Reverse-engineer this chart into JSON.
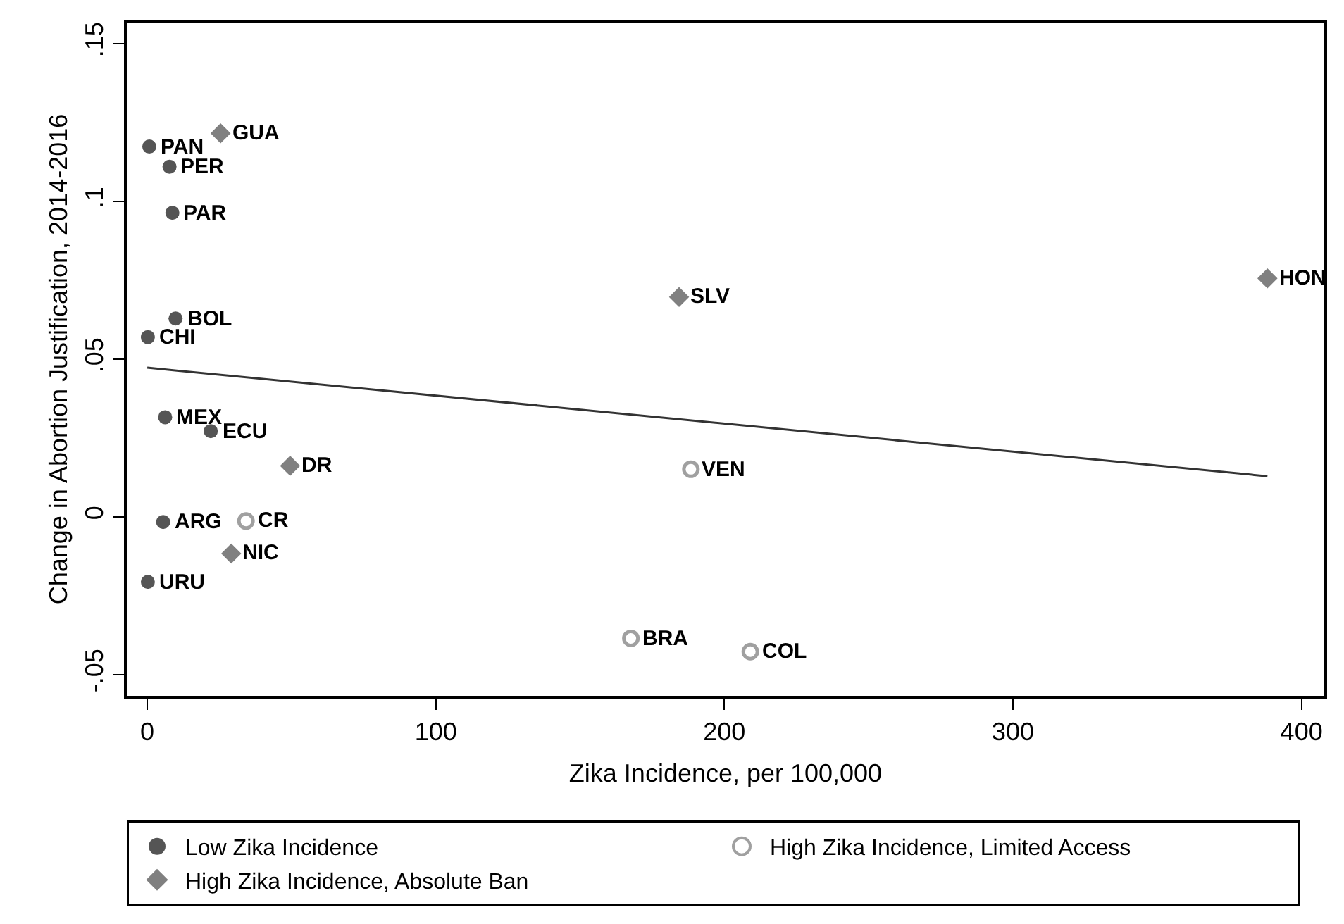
{
  "chart_data": {
    "type": "scatter",
    "xlabel": "Zika Incidence, per 100,000",
    "ylabel": "Change in Abortion Justification, 2014-2016",
    "xlim": [
      -7.1,
      407.9
    ],
    "ylim": [
      -0.0568,
      0.1566
    ],
    "xticks": [
      0,
      100,
      200,
      300,
      400
    ],
    "yticks": [
      {
        "value": -0.05,
        "label": "-.05"
      },
      {
        "value": 0,
        "label": "0"
      },
      {
        "value": 0.05,
        "label": ".05"
      },
      {
        "value": 0.1,
        "label": ".1"
      },
      {
        "value": 0.15,
        "label": ".15"
      }
    ],
    "legend": "bottom",
    "series": [
      {
        "name": "Low Zika Incidence",
        "color": "#555555",
        "marker": "circle",
        "x": [
          0.7,
          7.7,
          8.7,
          9.8,
          0.2,
          6.2,
          22,
          5.5,
          0.2
        ],
        "values": [
          0.1173,
          0.1109,
          0.0963,
          0.0628,
          0.0569,
          0.0315,
          0.0271,
          -0.0017,
          -0.0207
        ]
      },
      {
        "name": "High Zika Incidence, Limited Access",
        "color": "#a0a0a0",
        "marker": "circle-open",
        "x": [
          34.2,
          188.4,
          167.6,
          209
        ],
        "values": [
          -0.0014,
          0.015,
          -0.0386,
          -0.0428
        ]
      },
      {
        "name": "High Zika Incidence, Absolute Ban",
        "color": "#808080",
        "marker": "diamond",
        "x": [
          25.4,
          49.5,
          29.1,
          184.3,
          388.2
        ],
        "values": [
          0.1215,
          0.0161,
          -0.0117,
          0.0696,
          0.0755
        ]
      },
      {
        "type": "line",
        "color": "#333333",
        "x": [
          0,
          388.2
        ],
        "values": [
          0.0472,
          0.0128
        ]
      }
    ],
    "annotations": [
      {
        "text": "PAN",
        "x": 0.7,
        "y": 0.1173
      },
      {
        "text": "PER",
        "x": 7.7,
        "y": 0.1109
      },
      {
        "text": "PAR",
        "x": 8.7,
        "y": 0.0963
      },
      {
        "text": "BOL",
        "x": 9.8,
        "y": 0.0628
      },
      {
        "text": "CHI",
        "x": 0.2,
        "y": 0.0569
      },
      {
        "text": "MEX",
        "x": 6.2,
        "y": 0.0315
      },
      {
        "text": "ECU",
        "x": 22,
        "y": 0.0271
      },
      {
        "text": "ARG",
        "x": 5.5,
        "y": -0.0017
      },
      {
        "text": "URU",
        "x": 0.2,
        "y": -0.0207
      },
      {
        "text": "CR",
        "x": 34.2,
        "y": -0.0014
      },
      {
        "text": "VEN",
        "x": 188.4,
        "y": 0.015
      },
      {
        "text": "BRA",
        "x": 167.6,
        "y": -0.0386
      },
      {
        "text": "COL",
        "x": 209,
        "y": -0.0428
      },
      {
        "text": "GUA",
        "x": 25.4,
        "y": 0.1215
      },
      {
        "text": "DR",
        "x": 49.5,
        "y": 0.0161
      },
      {
        "text": "NIC",
        "x": 29.1,
        "y": -0.0117
      },
      {
        "text": "SLV",
        "x": 184.3,
        "y": 0.0696
      },
      {
        "text": "HON",
        "x": 388.2,
        "y": 0.0755
      }
    ]
  }
}
